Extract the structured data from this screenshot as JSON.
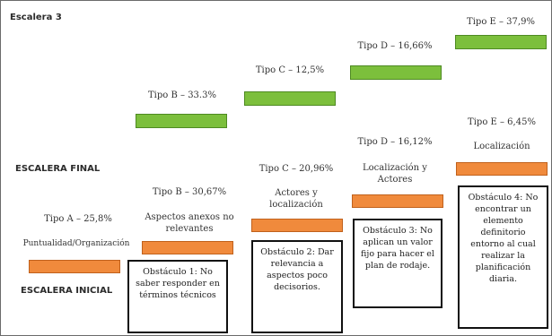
{
  "title": "Escalera 3",
  "final_label": "ESCALERA FINAL",
  "initial_label": "ESCALERA INICIAL",
  "colors": {
    "green": "#7cbf3c",
    "orange": "#f08a3c"
  },
  "final_steps": [
    {
      "label": "Tipo B – 33.3%",
      "percent": 33.3
    },
    {
      "label": "Tipo C – 12,5%",
      "percent": 12.5
    },
    {
      "label": "Tipo D – 16,66%",
      "percent": 16.66
    },
    {
      "label": "Tipo E – 37,9%",
      "percent": 37.9
    }
  ],
  "initial_steps": [
    {
      "label": "Tipo A – 25,8%",
      "sublabel": "Puntualidad/Organización",
      "percent": 25.8
    },
    {
      "label": "Tipo B – 30,67%",
      "sublabel": "Aspectos anexos no relevantes",
      "percent": 30.67
    },
    {
      "label": "Tipo C – 20,96%",
      "sublabel": "Actores y localización",
      "percent": 20.96
    },
    {
      "label": "Tipo D – 16,12%",
      "sublabel": "Localización y Actores",
      "percent": 16.12
    },
    {
      "label": "Tipo E – 6,45%",
      "sublabel": "Localización",
      "percent": 6.45
    }
  ],
  "obstacles": [
    "Obstáculo 1: No saber responder en términos técnicos",
    "Obstáculo 2: Dar relevancia a aspectos poco decisorios.",
    "Obstáculo 3: No aplican un valor fijo para hacer el plan de rodaje.",
    "Obstáculo 4: No encontrar un elemento definitorio entorno al cual realizar la planificación diaria."
  ]
}
